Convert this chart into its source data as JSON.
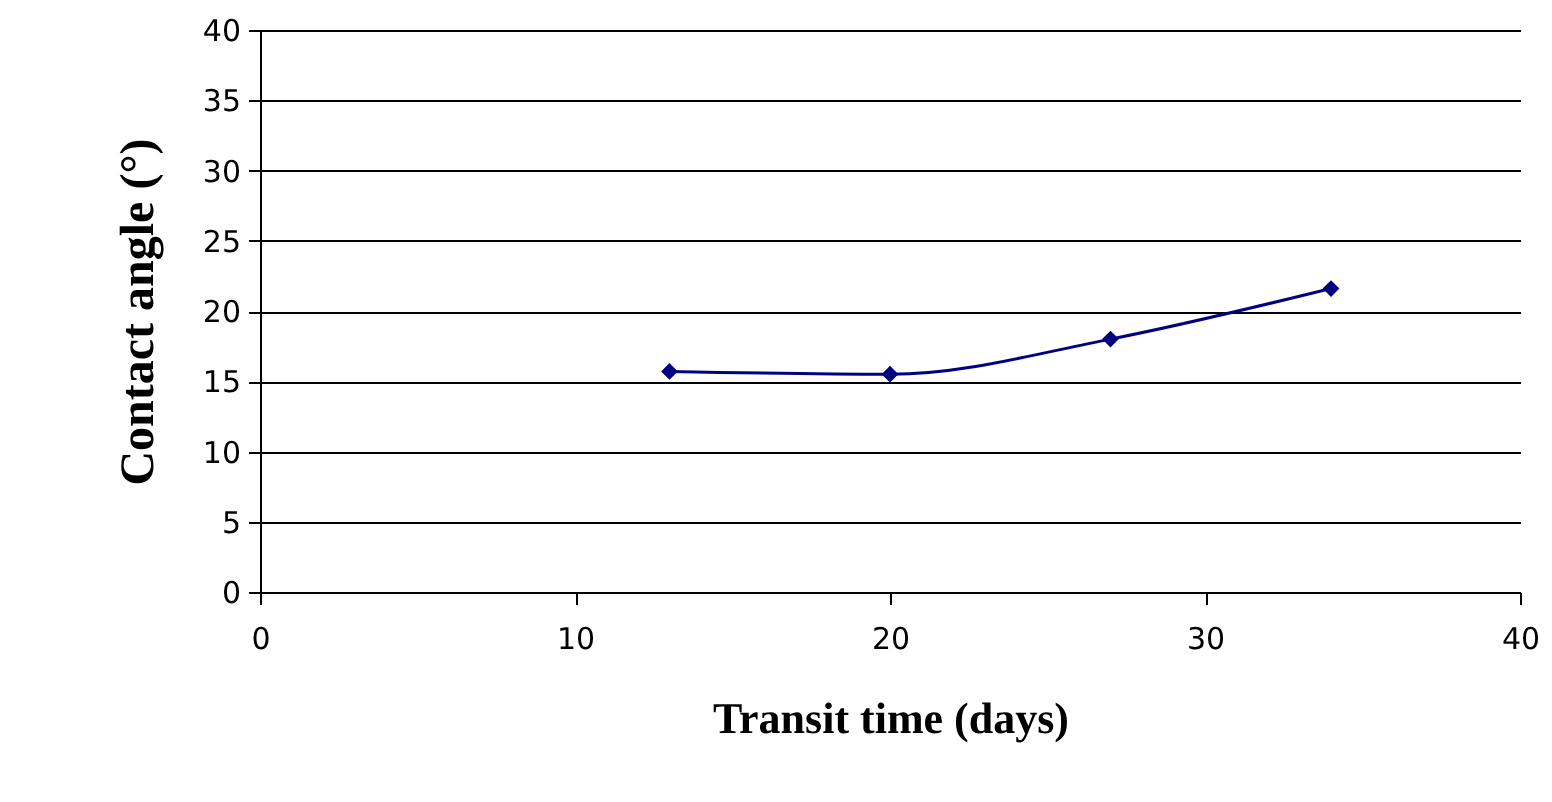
{
  "chart_data": {
    "type": "line",
    "xlabel": "Transit time (days)",
    "ylabel": "Contact angle (°)",
    "x": [
      13,
      20,
      27,
      34
    ],
    "series": [
      {
        "color": "#000080",
        "values": [
          15.7,
          15.5,
          18,
          21.6
        ]
      }
    ],
    "xlim": [
      0,
      40
    ],
    "xticks": [
      0,
      10,
      20,
      30,
      40
    ],
    "ylim": [
      0,
      40
    ],
    "yticks": [
      0,
      5,
      10,
      15,
      20,
      25,
      30,
      35,
      40
    ],
    "grid": "y",
    "marker": "diamond",
    "line_style": "solid"
  }
}
